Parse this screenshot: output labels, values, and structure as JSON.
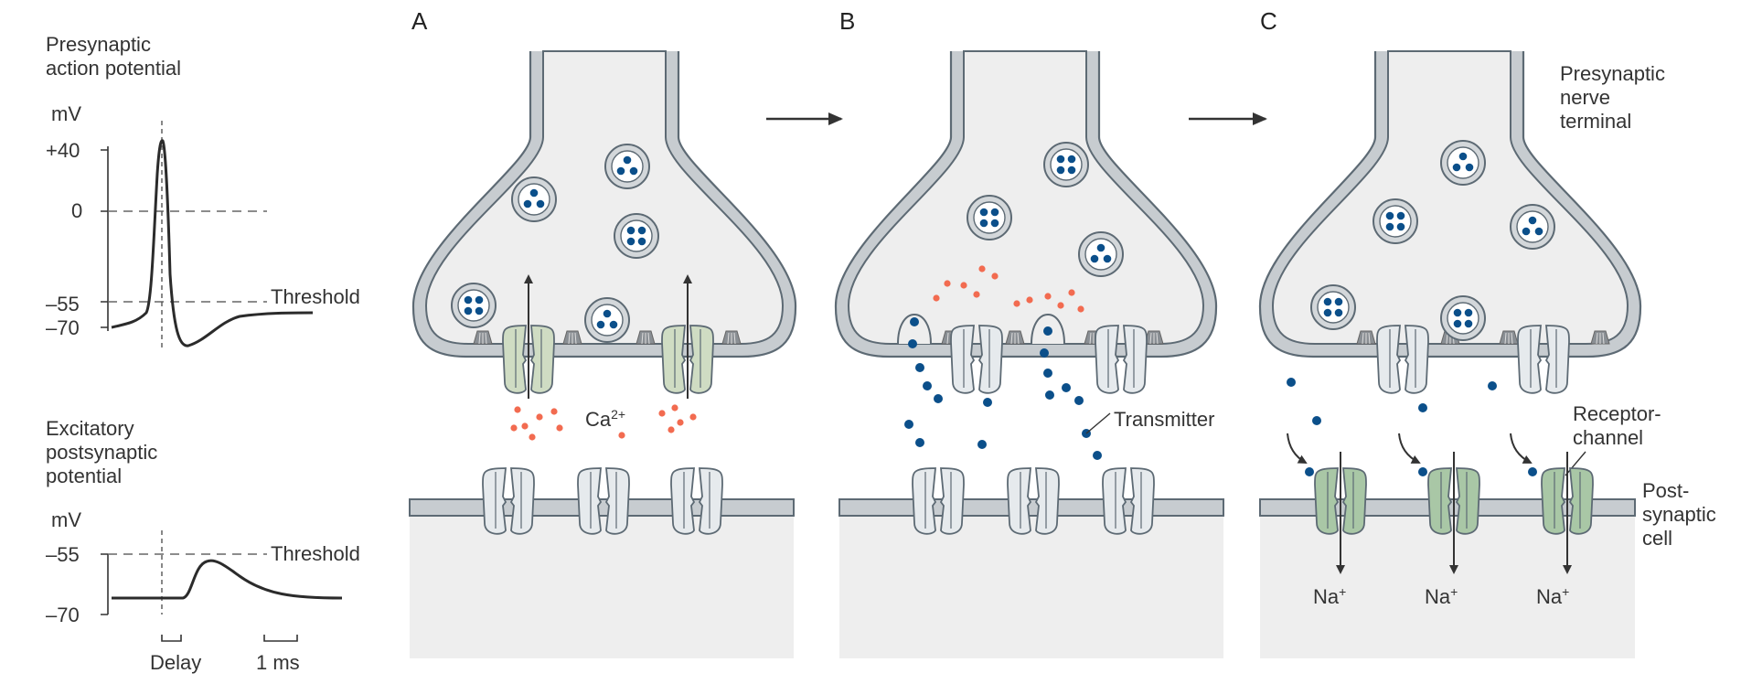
{
  "traces": {
    "presynaptic": {
      "title_line1": "Presynaptic",
      "title_line2": "action potential",
      "unit": "mV",
      "ticks": [
        "+40",
        "0",
        "–55",
        "–70"
      ],
      "threshold_label": "Threshold"
    },
    "postsynaptic": {
      "title_line1": "Excitatory",
      "title_line2": "postsynaptic",
      "title_line3": "potential",
      "unit": "mV",
      "ticks": [
        "–55",
        "–70"
      ],
      "threshold_label": "Threshold",
      "delay_label": "Delay",
      "scale_label": "1 ms"
    }
  },
  "panels": {
    "A": {
      "letter": "A",
      "ion_label": "Ca",
      "ion_charge": "2+"
    },
    "B": {
      "letter": "B",
      "transmitter_label": "Transmitter"
    },
    "C": {
      "letter": "C",
      "terminal_line1": "Presynaptic",
      "terminal_line2": "nerve",
      "terminal_line3": "terminal",
      "receptor_line1": "Receptor-",
      "receptor_line2": "channel",
      "post_line1": "Post-",
      "post_line2": "synaptic",
      "post_line3": "cell",
      "na_labels": [
        "Na",
        "Na",
        "Na"
      ],
      "na_charge": "+"
    }
  },
  "colors": {
    "membrane": "#c7ccd0",
    "membrane_stroke": "#5d6a74",
    "cytoplasm": "#eeeeee",
    "transmitter": "#0b4f8a",
    "calcium": "#f26b50",
    "ca_channel": "#cfdcc3",
    "receptor_open": "#a9c7a6",
    "channel_closed": "#e6eaed"
  }
}
